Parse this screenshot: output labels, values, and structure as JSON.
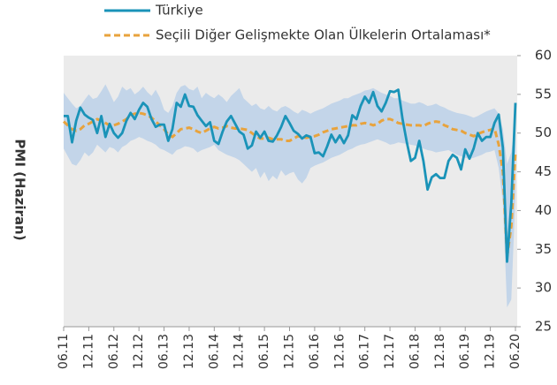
{
  "chart_data": {
    "type": "line",
    "ylabel": "PMI (Haziran)",
    "categories": [
      "06.11",
      null,
      null,
      null,
      null,
      null,
      "12.11",
      null,
      null,
      null,
      null,
      null,
      "06.12",
      null,
      null,
      null,
      null,
      null,
      "12.12",
      null,
      null,
      null,
      null,
      null,
      "06.13",
      null,
      null,
      null,
      null,
      null,
      "12.13",
      null,
      null,
      null,
      null,
      null,
      "06.14",
      null,
      null,
      null,
      null,
      null,
      "12.14",
      null,
      null,
      null,
      null,
      null,
      "06.15",
      null,
      null,
      null,
      null,
      null,
      "12.15",
      null,
      null,
      null,
      null,
      null,
      "06.16",
      null,
      null,
      null,
      null,
      null,
      "12.16",
      null,
      null,
      null,
      null,
      null,
      "06.17",
      null,
      null,
      null,
      null,
      null,
      "12.17",
      null,
      null,
      null,
      null,
      null,
      "06.18",
      null,
      null,
      null,
      null,
      null,
      "12.18",
      null,
      null,
      null,
      null,
      null,
      "06.19",
      null,
      null,
      null,
      null,
      null,
      "12.19",
      null,
      null,
      null,
      null,
      null,
      "06.20"
    ],
    "series": [
      {
        "name": "Türkiye",
        "color": "#1a93b8",
        "style": "solid",
        "values": [
          52.2,
          52.2,
          48.8,
          51.6,
          53.3,
          52.4,
          52.0,
          51.7,
          50.0,
          52.2,
          49.5,
          51.2,
          50.0,
          49.4,
          50.0,
          51.6,
          52.6,
          51.8,
          53.0,
          53.9,
          53.4,
          51.8,
          50.8,
          51.1,
          51.1,
          49.0,
          50.5,
          53.9,
          53.4,
          55.0,
          53.5,
          53.4,
          52.3,
          51.6,
          50.9,
          51.4,
          49.0,
          48.6,
          50.2,
          51.5,
          52.2,
          51.2,
          50.2,
          49.8,
          48.0,
          48.4,
          50.2,
          49.4,
          50.2,
          49.0,
          48.9,
          49.7,
          50.8,
          52.2,
          51.3,
          50.3,
          49.9,
          49.3,
          49.7,
          49.5,
          47.4,
          47.5,
          47.0,
          48.3,
          49.8,
          48.8,
          49.7,
          48.7,
          49.7,
          52.3,
          51.8,
          53.5,
          54.7,
          53.9,
          55.3,
          53.5,
          52.8,
          53.9,
          55.4,
          55.3,
          55.6,
          51.8,
          48.9,
          46.4,
          46.8,
          49.0,
          46.4,
          42.7,
          44.3,
          44.7,
          44.2,
          44.2,
          46.4,
          47.2,
          46.8,
          45.3,
          47.9,
          46.7,
          48.0,
          50.0,
          49.0,
          49.5,
          49.5,
          51.3,
          52.4,
          48.1,
          33.4,
          40.9,
          53.9
        ]
      },
      {
        "name": "Seçili Diğer Gelişmekte Olan Ülkelerin Ortalaması*",
        "color": "#e8a33d",
        "style": "dashed",
        "values": [
          51.5,
          51.0,
          50.5,
          50.3,
          50.5,
          51.0,
          51.2,
          51.5,
          51.8,
          51.6,
          51.3,
          51.0,
          51.0,
          51.2,
          51.5,
          51.8,
          52.3,
          52.5,
          52.6,
          52.5,
          52.3,
          52.0,
          51.5,
          51.0,
          50.5,
          49.8,
          49.5,
          50.0,
          50.5,
          50.6,
          50.7,
          50.5,
          50.2,
          50.0,
          50.3,
          50.6,
          50.8,
          50.6,
          50.7,
          50.9,
          50.7,
          50.6,
          50.6,
          50.5,
          50.4,
          50.0,
          49.6,
          49.3,
          49.3,
          49.4,
          49.2,
          49.2,
          49.2,
          49.0,
          49.0,
          49.3,
          49.6,
          49.5,
          49.4,
          49.5,
          49.6,
          49.8,
          50.1,
          50.3,
          50.5,
          50.6,
          50.7,
          50.8,
          50.9,
          51.0,
          51.0,
          51.2,
          51.3,
          51.2,
          51.0,
          51.2,
          51.6,
          51.8,
          51.8,
          51.6,
          51.3,
          51.2,
          51.1,
          51.0,
          51.0,
          51.0,
          50.9,
          51.2,
          51.4,
          51.5,
          51.4,
          51.0,
          50.8,
          50.5,
          50.4,
          50.3,
          50.0,
          49.8,
          49.6,
          49.9,
          50.1,
          50.3,
          50.4,
          50.6,
          48.5,
          45.0,
          34.0,
          38.0,
          47.5
        ]
      }
    ],
    "band": {
      "color": "#c3d5e9",
      "upper": [
        55.2,
        54.5,
        53.8,
        53.2,
        53.5,
        54.3,
        55.0,
        54.4,
        54.6,
        55.4,
        56.3,
        55.2,
        54.0,
        54.7,
        56.0,
        55.5,
        55.8,
        55.0,
        55.4,
        56.0,
        55.3,
        54.8,
        55.6,
        54.6,
        53.0,
        52.6,
        53.5,
        55.2,
        56.0,
        56.2,
        55.7,
        55.5,
        56.0,
        54.5,
        55.2,
        54.8,
        54.5,
        55.0,
        54.6,
        54.0,
        54.8,
        55.3,
        55.8,
        54.5,
        54.0,
        53.5,
        53.8,
        53.2,
        53.0,
        53.5,
        53.0,
        52.8,
        53.3,
        53.5,
        53.2,
        52.8,
        52.5,
        53.0,
        52.8,
        52.5,
        52.8,
        53.0,
        53.2,
        53.5,
        53.8,
        54.0,
        54.2,
        54.5,
        54.5,
        54.8,
        55.0,
        55.2,
        55.5,
        55.6,
        55.8,
        55.5,
        55.2,
        55.0,
        54.8,
        54.5,
        54.5,
        54.2,
        54.0,
        53.8,
        53.8,
        54.0,
        53.8,
        53.5,
        53.6,
        53.8,
        53.5,
        53.3,
        53.0,
        52.8,
        52.6,
        52.5,
        52.4,
        52.2,
        52.0,
        52.2,
        52.5,
        52.8,
        53.0,
        53.2,
        52.5,
        50.5,
        46.0,
        47.5,
        51.5
      ],
      "lower": [
        48.0,
        47.0,
        46.0,
        45.8,
        46.5,
        47.5,
        47.0,
        47.5,
        48.5,
        48.0,
        47.5,
        48.2,
        48.0,
        47.5,
        48.2,
        48.5,
        49.0,
        49.2,
        49.5,
        49.3,
        49.0,
        48.8,
        48.5,
        48.0,
        47.8,
        47.5,
        47.2,
        47.8,
        48.0,
        48.3,
        48.2,
        48.0,
        47.5,
        47.8,
        48.0,
        48.2,
        48.5,
        47.8,
        47.5,
        47.2,
        47.0,
        46.8,
        46.5,
        46.0,
        45.5,
        45.0,
        45.5,
        44.2,
        45.0,
        43.8,
        44.5,
        44.0,
        45.2,
        44.5,
        44.8,
        45.0,
        44.0,
        43.5,
        44.2,
        45.5,
        45.8,
        46.0,
        46.2,
        46.5,
        46.8,
        47.0,
        47.2,
        47.5,
        47.8,
        48.0,
        48.3,
        48.5,
        48.6,
        48.8,
        49.0,
        49.2,
        49.0,
        48.8,
        48.5,
        48.6,
        48.8,
        48.7,
        48.6,
        48.5,
        48.4,
        48.2,
        48.0,
        47.8,
        47.7,
        47.5,
        47.6,
        47.7,
        47.8,
        47.5,
        47.2,
        47.0,
        46.8,
        46.7,
        46.8,
        47.0,
        47.2,
        47.5,
        47.6,
        47.8,
        45.5,
        41.0,
        27.5,
        28.5,
        42.0
      ]
    },
    "ylim": [
      25,
      60
    ],
    "yticks": [
      25,
      30,
      35,
      40,
      45,
      50,
      55,
      60
    ],
    "plot_background": "#ebebeb"
  }
}
